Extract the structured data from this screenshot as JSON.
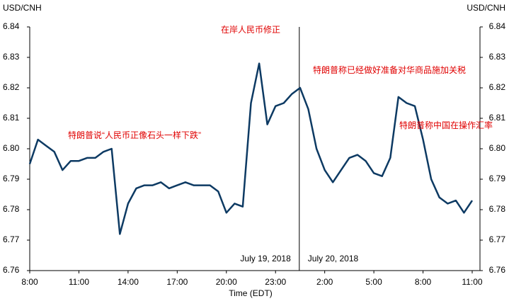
{
  "chart_data": {
    "type": "line",
    "y_label": "USD/CNH",
    "y2_label": "USD/CNH",
    "x_label": "Time (EDT)",
    "categories": [
      "8:00",
      null,
      null,
      null,
      null,
      null,
      "11:00",
      null,
      null,
      null,
      null,
      null,
      "14:00",
      null,
      null,
      null,
      null,
      null,
      "17:00",
      null,
      null,
      null,
      null,
      null,
      "20:00",
      null,
      null,
      null,
      null,
      null,
      "23:00",
      null,
      null,
      null,
      null,
      null,
      "2:00",
      null,
      null,
      null,
      null,
      null,
      "5:00",
      null,
      null,
      null,
      null,
      null,
      "8:00",
      null,
      null,
      null,
      null,
      null,
      "11:00"
    ],
    "series": [
      {
        "name": "USD/CNH",
        "color": "#0d3a63",
        "values": [
          6.795,
          6.803,
          6.801,
          6.799,
          6.793,
          6.796,
          6.796,
          6.797,
          6.797,
          6.799,
          6.8,
          6.772,
          6.782,
          6.787,
          6.788,
          6.788,
          6.789,
          6.787,
          6.788,
          6.789,
          6.788,
          6.788,
          6.788,
          6.786,
          6.779,
          6.782,
          6.781,
          6.815,
          6.828,
          6.808,
          6.814,
          6.815,
          6.818,
          6.82,
          6.813,
          6.8,
          6.793,
          6.789,
          6.793,
          6.797,
          6.798,
          6.796,
          6.792,
          6.791,
          6.797,
          6.817,
          6.815,
          6.814,
          6.803,
          6.79,
          6.784,
          6.782,
          6.783,
          6.779,
          6.783
        ]
      }
    ],
    "ylim": [
      6.76,
      6.84
    ],
    "yticks": [
      6.76,
      6.77,
      6.78,
      6.79,
      {
        "value": 6.8,
        "label": "6.80"
      },
      6.81,
      6.82,
      6.83,
      6.84
    ],
    "y2lim": [
      6.76,
      6.84
    ],
    "y2ticks": [
      6.76,
      6.77,
      6.78,
      6.79,
      {
        "value": 6.8,
        "label": "6.80"
      },
      6.81,
      6.82,
      6.83,
      6.84
    ],
    "annotations": [
      "在岸人民币修正",
      "特朗普称已经做好准备对华商品施加关税",
      "特朗普说“人民币正像石头一样下跌”",
      "特朗普称中国在操作汇率",
      "July 19, 2018",
      "July 20, 2018"
    ],
    "grid": false
  }
}
